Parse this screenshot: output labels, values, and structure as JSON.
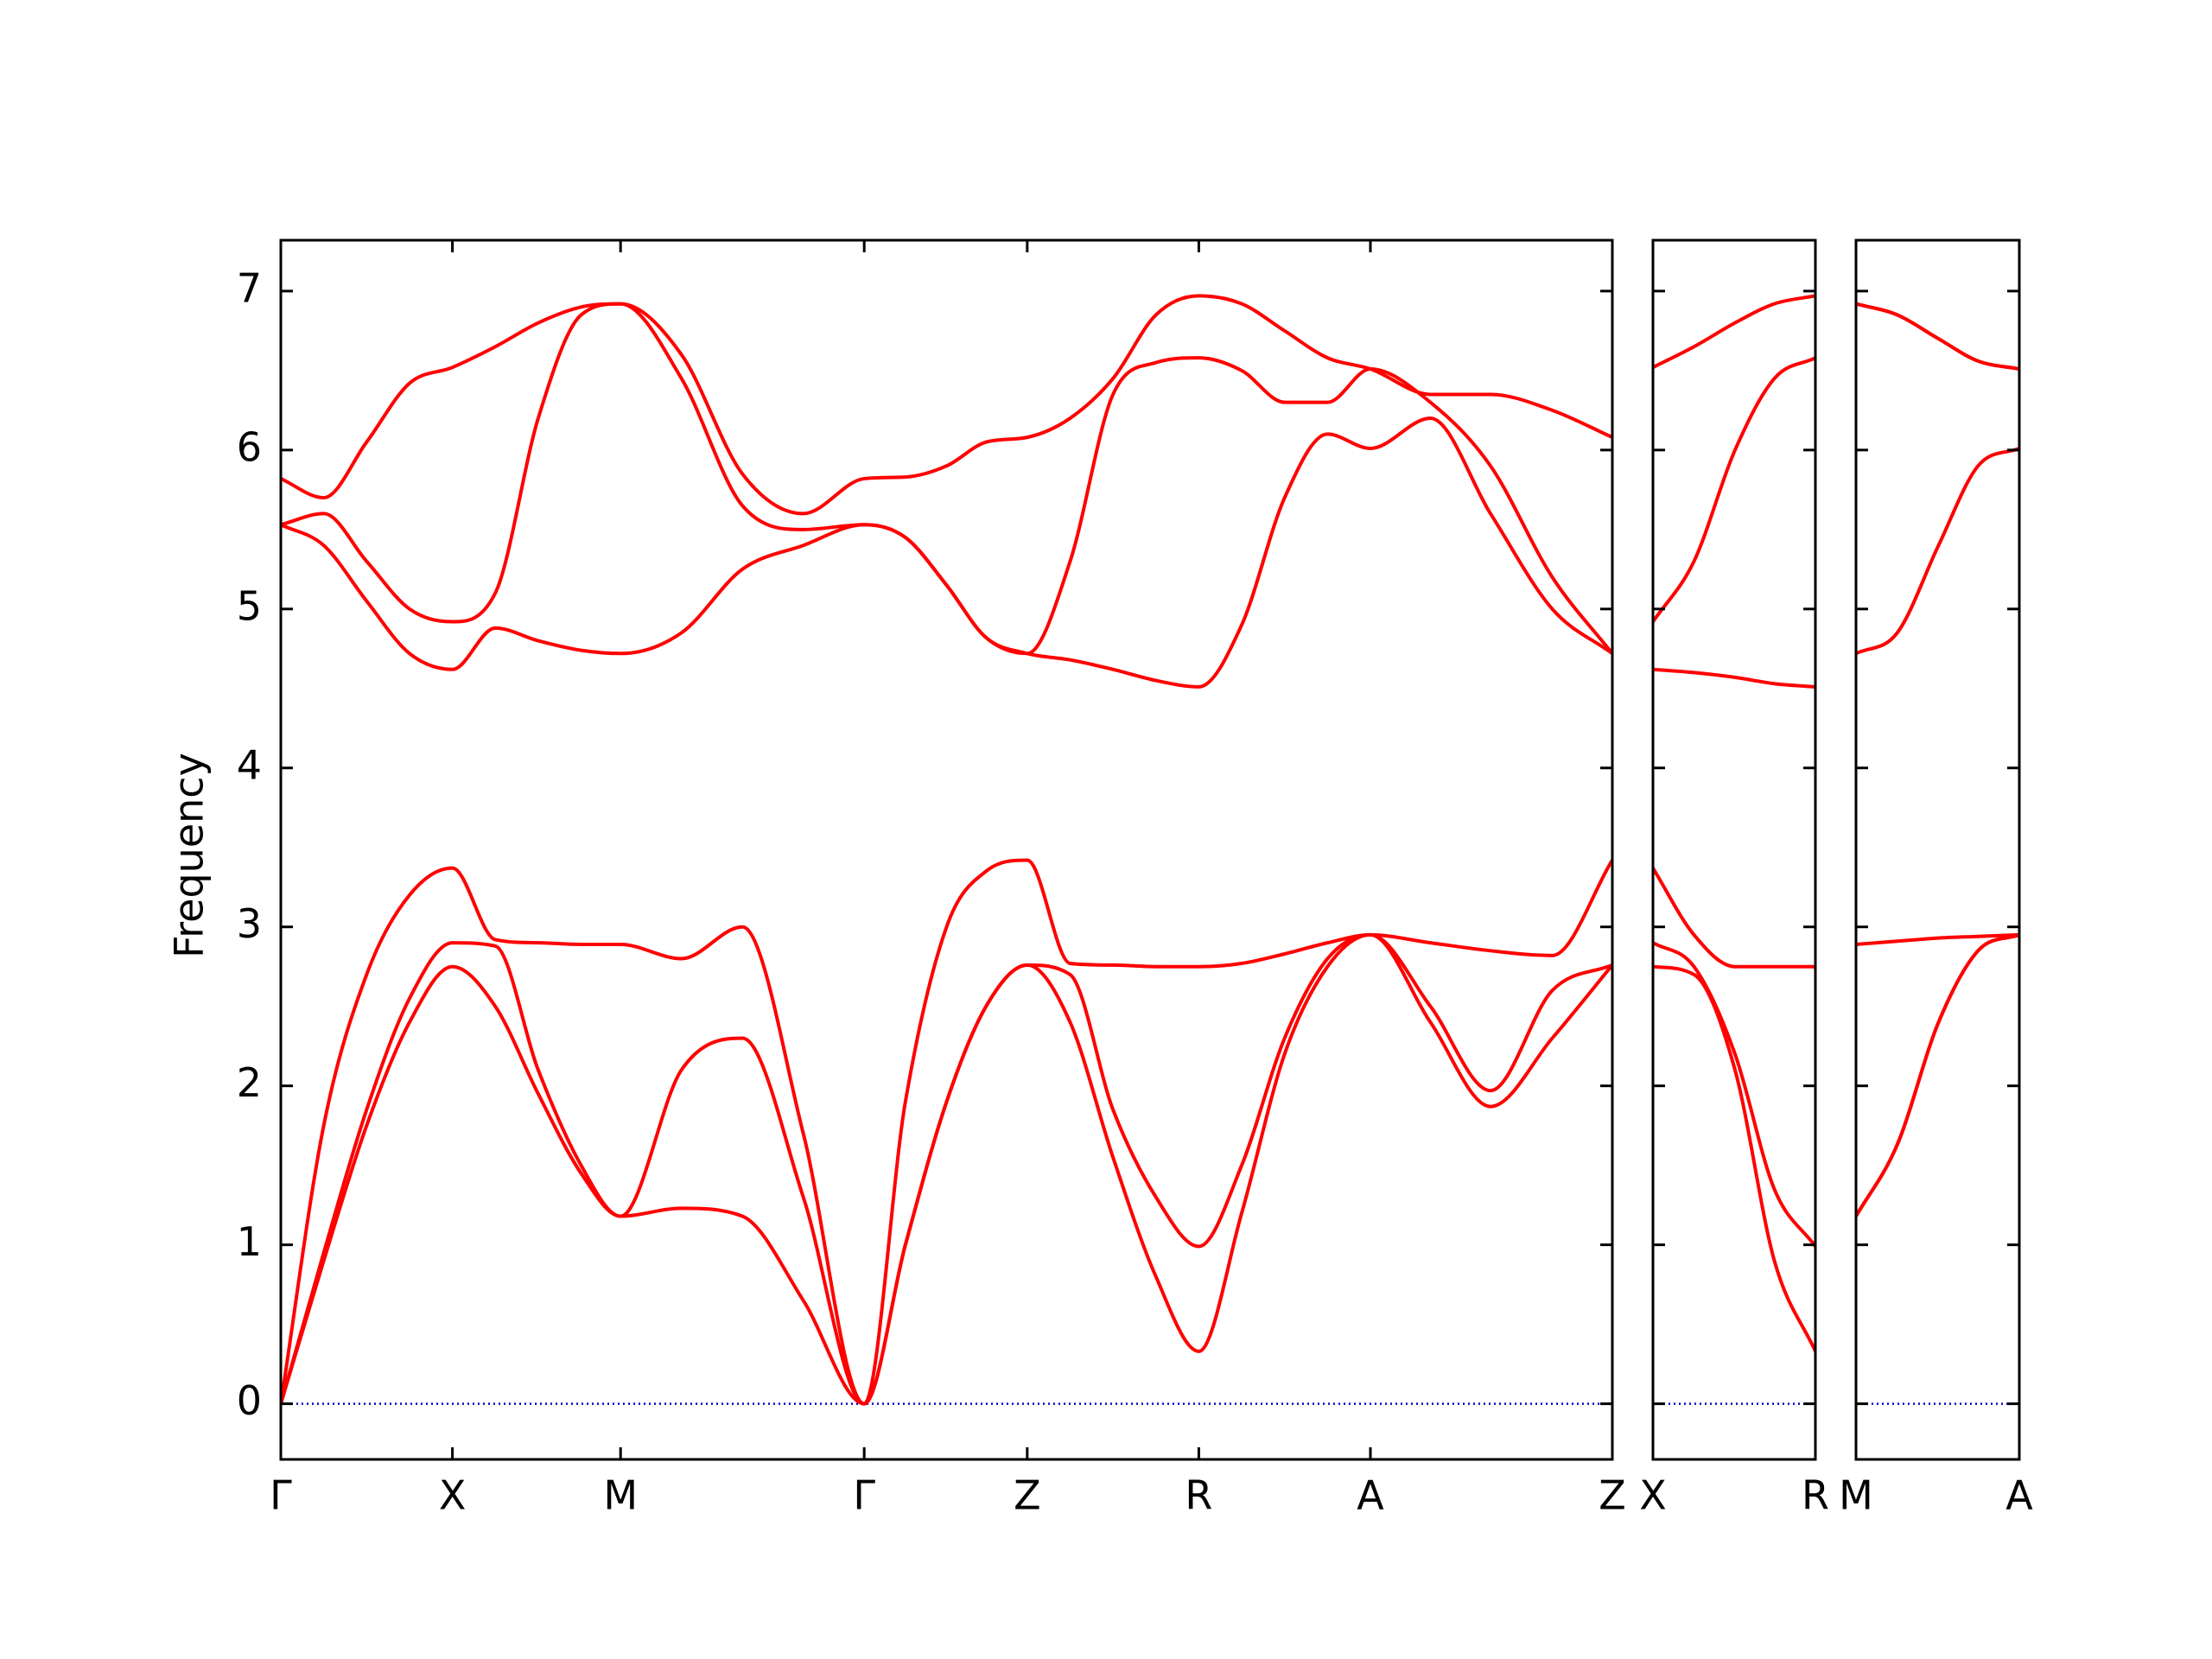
{
  "chart_data": [
    {
      "type": "line",
      "ylabel": "Frequency",
      "x": [
        0,
        0.25,
        0.5,
        0.75,
        1,
        1.25,
        1.5,
        1.75,
        1.98,
        2.335,
        2.69,
        3.045,
        3.4,
        3.64,
        3.88,
        4.11,
        4.35,
        4.6,
        4.85,
        5.1,
        5.35,
        5.6,
        5.85,
        6.1,
        6.35,
        6.7,
        7.05,
        7.41,
        7.76
      ],
      "xlim": [
        0,
        7.76
      ],
      "xticks": [
        {
          "value": 0,
          "label": "Γ"
        },
        {
          "value": 1,
          "label": "X"
        },
        {
          "value": 1.98,
          "label": "M"
        },
        {
          "value": 3.4,
          "label": "Γ"
        },
        {
          "value": 4.35,
          "label": "Z"
        },
        {
          "value": 5.35,
          "label": "R"
        },
        {
          "value": 6.35,
          "label": "A"
        },
        {
          "value": 7.76,
          "label": "Z"
        }
      ],
      "ylim": [
        -0.35,
        7.32
      ],
      "yticks": [
        0,
        1,
        2,
        3,
        4,
        5,
        6,
        7
      ],
      "show_yticklabels": true,
      "zero_line": {
        "value": 0,
        "color": "#0000cc"
      },
      "series": [
        {
          "color": "#ff0000",
          "values": [
            0,
            0.9,
            1.75,
            2.4,
            2.75,
            2.5,
            1.95,
            1.45,
            1.18,
            1.23,
            1.18,
            0.65,
            0,
            1.0,
            1.9,
            2.5,
            2.76,
            2.4,
            1.55,
            0.8,
            0.33,
            1.2,
            2.2,
            2.75,
            2.95,
            2.4,
            1.87,
            2.3,
            2.76
          ]
        },
        {
          "color": "#ff0000",
          "values": [
            0,
            0.95,
            1.85,
            2.55,
            2.9,
            2.88,
            2.1,
            1.5,
            1.18,
            2.1,
            2.3,
            1.3,
            0,
            1.0,
            1.9,
            2.5,
            2.76,
            2.7,
            1.85,
            1.3,
            0.99,
            1.5,
            2.3,
            2.8,
            2.95,
            2.5,
            1.97,
            2.6,
            2.76
          ]
        },
        {
          "color": "#ff0000",
          "values": [
            0,
            1.75,
            2.7,
            3.2,
            3.37,
            2.92,
            2.9,
            2.89,
            2.89,
            2.8,
            3.0,
            1.7,
            0,
            1.9,
            3.0,
            3.35,
            3.42,
            2.77,
            2.76,
            2.75,
            2.75,
            2.77,
            2.83,
            2.9,
            2.95,
            2.9,
            2.85,
            2.82,
            3.42
          ]
        },
        {
          "color": "#ff0000",
          "values": [
            5.53,
            5.4,
            5.05,
            4.72,
            4.62,
            4.88,
            4.8,
            4.74,
            4.72,
            4.85,
            5.25,
            5.4,
            5.53,
            5.45,
            5.15,
            4.82,
            4.72,
            4.68,
            4.62,
            4.55,
            4.51,
            4.9,
            5.7,
            6.1,
            6.01,
            6.2,
            5.6,
            5.0,
            4.72
          ]
        },
        {
          "color": "#ff0000",
          "values": [
            5.53,
            5.6,
            5.3,
            5.0,
            4.92,
            5.1,
            6.2,
            6.85,
            6.92,
            6.45,
            5.65,
            5.5,
            5.53,
            5.45,
            5.15,
            4.82,
            4.72,
            5.3,
            6.35,
            6.55,
            6.58,
            6.5,
            6.3,
            6.3,
            6.51,
            6.3,
            5.9,
            5.2,
            4.72
          ]
        },
        {
          "color": "#ff0000",
          "values": [
            5.82,
            5.7,
            6.05,
            6.42,
            6.52,
            6.65,
            6.8,
            6.9,
            6.92,
            6.6,
            5.85,
            5.6,
            5.82,
            5.83,
            5.9,
            6.05,
            6.08,
            6.2,
            6.45,
            6.85,
            6.97,
            6.92,
            6.75,
            6.58,
            6.51,
            6.35,
            6.35,
            6.25,
            6.08
          ]
        }
      ]
    },
    {
      "type": "line",
      "x": [
        0,
        0.24,
        0.48,
        0.71,
        0.95
      ],
      "xlim": [
        0,
        0.95
      ],
      "xticks": [
        {
          "value": 0,
          "label": "X"
        },
        {
          "value": 0.95,
          "label": "R"
        }
      ],
      "ylim": [
        -0.35,
        7.32
      ],
      "yticks": [
        0,
        1,
        2,
        3,
        4,
        5,
        6,
        7
      ],
      "show_yticklabels": false,
      "zero_line": {
        "value": 0,
        "color": "#0000cc"
      },
      "series": [
        {
          "color": "#ff0000",
          "values": [
            2.75,
            2.7,
            2.1,
            0.9,
            0.33
          ]
        },
        {
          "color": "#ff0000",
          "values": [
            2.9,
            2.75,
            2.2,
            1.35,
            0.99
          ]
        },
        {
          "color": "#ff0000",
          "values": [
            3.37,
            2.95,
            2.75,
            2.75,
            2.75
          ]
        },
        {
          "color": "#ff0000",
          "values": [
            4.62,
            4.6,
            4.57,
            4.53,
            4.51
          ]
        },
        {
          "color": "#ff0000",
          "values": [
            4.92,
            5.3,
            6.0,
            6.45,
            6.58
          ]
        },
        {
          "color": "#ff0000",
          "values": [
            6.52,
            6.65,
            6.8,
            6.92,
            6.97
          ]
        }
      ]
    },
    {
      "type": "line",
      "x": [
        0,
        0.24,
        0.48,
        0.71,
        0.95
      ],
      "xlim": [
        0,
        0.95
      ],
      "xticks": [
        {
          "value": 0,
          "label": "M"
        },
        {
          "value": 0.95,
          "label": "A"
        }
      ],
      "ylim": [
        -0.35,
        7.32
      ],
      "yticks": [
        0,
        1,
        2,
        3,
        4,
        5,
        6,
        7
      ],
      "show_yticklabels": false,
      "zero_line": {
        "value": 0,
        "color": "#0000cc"
      },
      "series": [
        {
          "color": "#ff0000",
          "values": [
            1.18,
            1.63,
            2.4,
            2.85,
            2.95
          ]
        },
        {
          "color": "#ff0000",
          "values": [
            1.18,
            1.63,
            2.4,
            2.85,
            2.95
          ]
        },
        {
          "color": "#ff0000",
          "values": [
            2.89,
            2.91,
            2.93,
            2.94,
            2.95
          ]
        },
        {
          "color": "#ff0000",
          "values": [
            4.72,
            4.85,
            5.4,
            5.9,
            6.01
          ]
        },
        {
          "color": "#ff0000",
          "values": [
            6.92,
            6.85,
            6.7,
            6.56,
            6.51
          ]
        },
        {
          "color": "#ff0000",
          "values": [
            6.92,
            6.85,
            6.7,
            6.56,
            6.51
          ]
        }
      ]
    }
  ]
}
